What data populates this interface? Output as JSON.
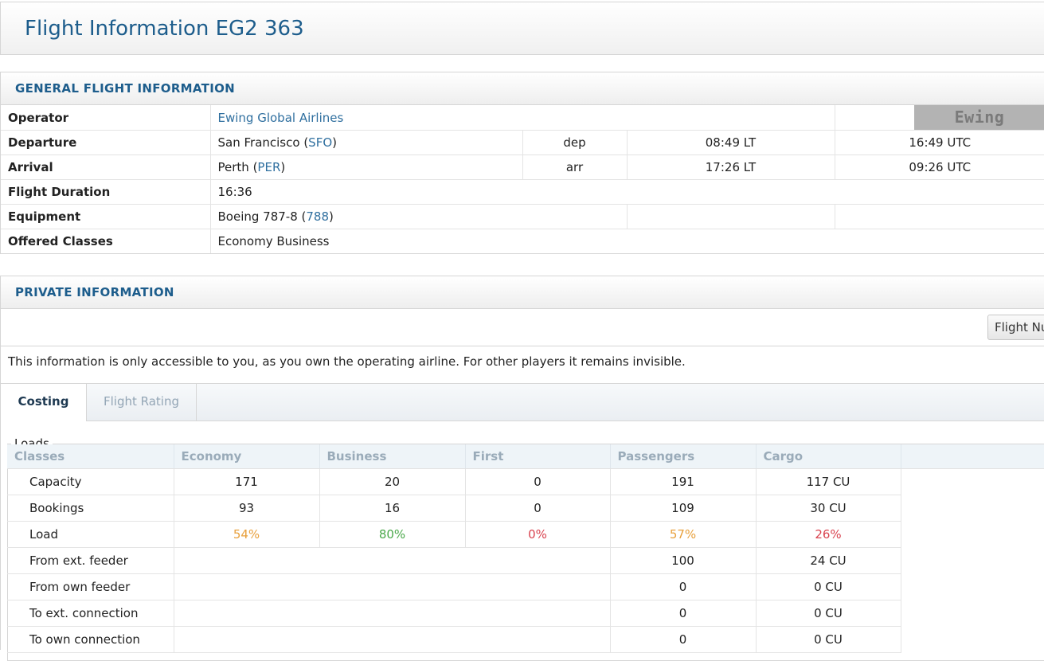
{
  "page": {
    "title": "Flight Information EG2 363"
  },
  "general": {
    "heading": "GENERAL FLIGHT INFORMATION",
    "operator": {
      "label": "Operator",
      "value": "Ewing Global Airlines",
      "logo_text": "Ewing"
    },
    "departure": {
      "label": "Departure",
      "city": "San Francisco",
      "code": "SFO",
      "type": "dep",
      "local": "08:49 LT",
      "utc": "16:49 UTC"
    },
    "arrival": {
      "label": "Arrival",
      "city": "Perth",
      "code": "PER",
      "type": "arr",
      "local": "17:26 LT",
      "utc": "09:26 UTC"
    },
    "duration": {
      "label": "Flight Duration",
      "value": "16:36"
    },
    "equipment": {
      "label": "Equipment",
      "model": "Boeing 787-8",
      "code": "788"
    },
    "classes": {
      "label": "Offered Classes",
      "value": "Economy Business"
    }
  },
  "private": {
    "heading": "PRIVATE INFORMATION",
    "button_label": "Flight Nu",
    "notice": "This information is only accessible to you, as you own the operating airline. For other players it remains invisible.",
    "tabs": [
      {
        "label": "Costing"
      },
      {
        "label": "Flight Rating"
      }
    ]
  },
  "loads": {
    "legend": "Loads",
    "headers": [
      "Classes",
      "Economy",
      "Business",
      "First",
      "Passengers",
      "Cargo"
    ],
    "rows": [
      {
        "label": "Capacity",
        "economy": "171",
        "business": "20",
        "first": "0",
        "passengers": "191",
        "cargo": "117 CU"
      },
      {
        "label": "Bookings",
        "economy": "93",
        "business": "16",
        "first": "0",
        "passengers": "109",
        "cargo": "30 CU"
      },
      {
        "label": "Load",
        "economy": "54%",
        "business": "80%",
        "first": "0%",
        "passengers": "57%",
        "cargo": "26%"
      },
      {
        "label": "From ext. feeder",
        "passengers": "100",
        "cargo": "24 CU"
      },
      {
        "label": "From own feeder",
        "passengers": "0",
        "cargo": "0 CU"
      },
      {
        "label": "To ext. connection",
        "passengers": "0",
        "cargo": "0 CU"
      },
      {
        "label": "To own connection",
        "passengers": "0",
        "cargo": "0 CU"
      }
    ],
    "colors": {
      "orange": "#e8a03c",
      "green": "#4aa84a",
      "red": "#d9434f"
    }
  }
}
